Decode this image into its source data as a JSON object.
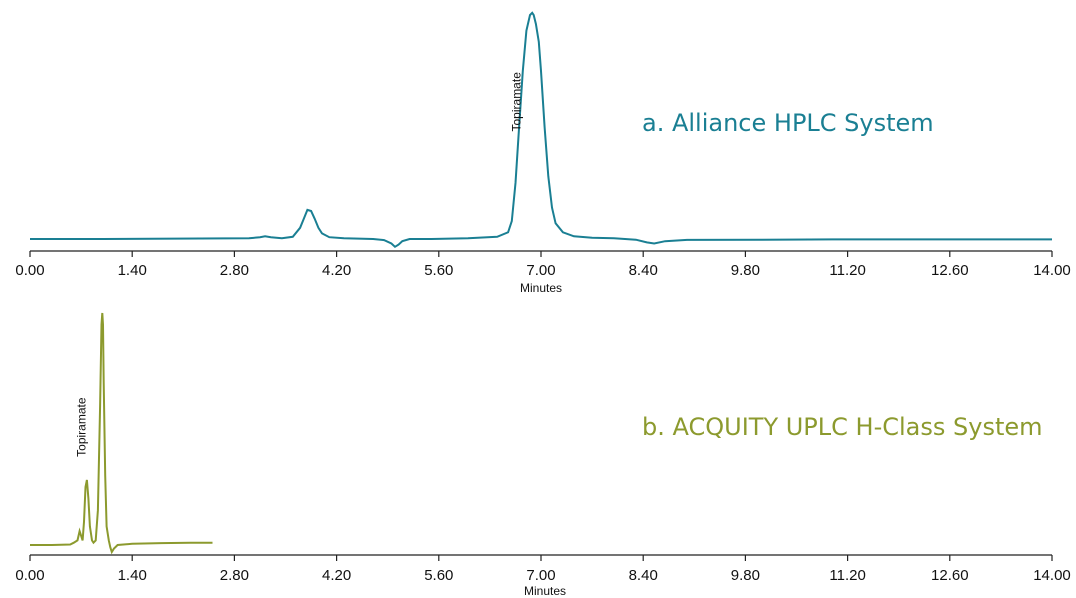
{
  "chart_data": [
    {
      "type": "line",
      "title": "a. Alliance HPLC System",
      "xlabel": "Minutes",
      "color": "#1a7f93",
      "xlim": [
        0,
        14
      ],
      "ylim": [
        -0.05,
        1.1
      ],
      "ticks": [
        "0.00",
        "1.40",
        "2.80",
        "4.20",
        "5.60",
        "7.00",
        "8.40",
        "9.80",
        "11.20",
        "12.60",
        "14.00"
      ],
      "peak_label": {
        "text": "Topiramate",
        "x": 6.72,
        "y": 0.48
      },
      "series": [
        {
          "x": [
            0,
            0.5,
            1,
            2,
            3,
            3.15,
            3.22,
            3.3,
            3.45,
            3.6,
            3.7,
            3.75,
            3.8,
            3.85,
            3.9,
            3.95,
            4.0,
            4.1,
            4.3,
            4.7,
            4.85,
            4.95,
            5.0,
            5.05,
            5.1,
            5.2,
            5.5,
            6.0,
            6.4,
            6.55,
            6.6,
            6.65,
            6.7,
            6.75,
            6.8,
            6.85,
            6.88,
            6.9,
            6.93,
            6.97,
            7.0,
            7.05,
            7.1,
            7.15,
            7.2,
            7.3,
            7.45,
            7.7,
            8.0,
            8.3,
            8.45,
            8.55,
            8.7,
            9.0,
            10,
            11,
            12,
            13,
            14
          ],
          "y": [
            0.0,
            0.0,
            0.0,
            0.002,
            0.003,
            0.008,
            0.012,
            0.008,
            0.003,
            0.01,
            0.05,
            0.09,
            0.13,
            0.125,
            0.09,
            0.05,
            0.025,
            0.008,
            0.003,
            0.0,
            -0.005,
            -0.02,
            -0.035,
            -0.025,
            -0.01,
            0.0,
            0.0,
            0.003,
            0.01,
            0.03,
            0.08,
            0.25,
            0.5,
            0.75,
            0.93,
            1.0,
            1.01,
            1.0,
            0.96,
            0.88,
            0.75,
            0.5,
            0.28,
            0.14,
            0.07,
            0.03,
            0.012,
            0.006,
            0.003,
            -0.003,
            -0.015,
            -0.02,
            -0.01,
            -0.004,
            -0.003,
            -0.002,
            -0.002,
            -0.002,
            -0.002
          ]
        }
      ]
    },
    {
      "type": "line",
      "title": "b. ACQUITY UPLC H-Class System",
      "xlabel": "Minutes",
      "color": "#8c9a2e",
      "xlim": [
        0,
        14
      ],
      "ylim": [
        -0.05,
        1.1
      ],
      "ticks": [
        "0.00",
        "1.40",
        "2.80",
        "4.20",
        "5.60",
        "7.00",
        "8.40",
        "9.80",
        "11.20",
        "12.60",
        "14.00"
      ],
      "peak_label": {
        "text": "Topiramate",
        "x": 0.76,
        "y": 0.38
      },
      "series": [
        {
          "x": [
            0,
            0.3,
            0.55,
            0.6,
            0.65,
            0.68,
            0.7,
            0.72,
            0.74,
            0.76,
            0.78,
            0.8,
            0.82,
            0.85,
            0.87,
            0.9,
            0.93,
            0.96,
            0.98,
            0.99,
            1.0,
            1.01,
            1.03,
            1.05,
            1.08,
            1.1,
            1.12,
            1.15,
            1.2,
            1.4,
            1.8,
            2.2,
            2.5
          ],
          "y": [
            0.0,
            0.0,
            0.002,
            0.01,
            0.02,
            0.06,
            0.04,
            0.02,
            0.1,
            0.25,
            0.28,
            0.2,
            0.08,
            0.02,
            0.01,
            0.02,
            0.15,
            0.6,
            0.95,
            1.0,
            0.95,
            0.7,
            0.3,
            0.08,
            0.02,
            -0.01,
            -0.03,
            -0.015,
            0.0,
            0.005,
            0.008,
            0.01,
            0.01
          ]
        }
      ]
    }
  ]
}
